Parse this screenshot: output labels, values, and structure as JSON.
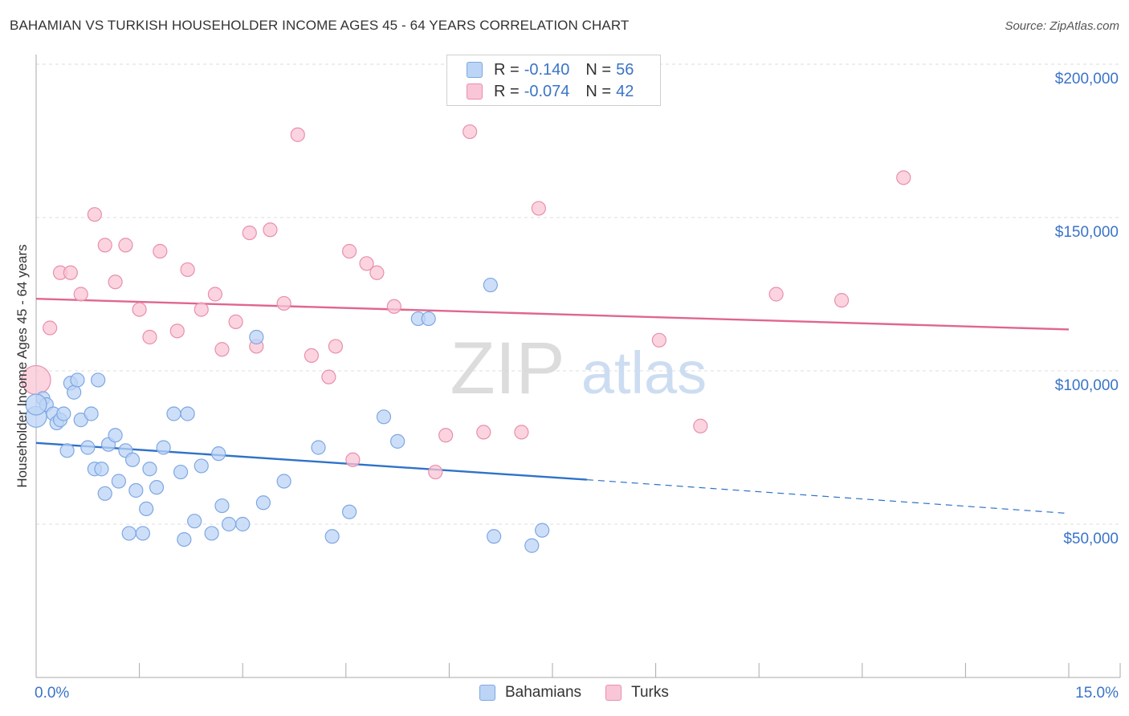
{
  "title": "BAHAMIAN VS TURKISH HOUSEHOLDER INCOME AGES 45 - 64 YEARS CORRELATION CHART",
  "source": "Source: ZipAtlas.com",
  "watermark": {
    "zip": "ZIP",
    "atlas": "atlas"
  },
  "legend": {
    "rows": [
      {
        "r_label": "R =",
        "r_value": "-0.140",
        "n_label": "N =",
        "n_value": "56"
      },
      {
        "r_label": "R =",
        "r_value": "-0.074",
        "n_label": "N =",
        "n_value": "42"
      }
    ]
  },
  "bottom_legend": [
    {
      "label": "Bahamians"
    },
    {
      "label": "Turks"
    }
  ],
  "colors": {
    "blue_fill": "#bcd4f6",
    "blue_stroke": "#7ea7e3",
    "blue_line": "#2f72c9",
    "pink_fill": "#f9c6d6",
    "pink_stroke": "#e98fab",
    "pink_line": "#e0668e",
    "axis_text": "#3a74c8",
    "grid": "#dddddd"
  },
  "chart_data": {
    "type": "scatter",
    "title": "BAHAMIAN VS TURKISH HOUSEHOLDER INCOME AGES 45 - 64 YEARS CORRELATION CHART",
    "xlabel": "",
    "ylabel": "Householder Income Ages 45 - 64 years",
    "xlim": [
      0,
      15
    ],
    "ylim": [
      0,
      210000
    ],
    "x_tick_labels": [
      "0.0%",
      "15.0%"
    ],
    "y_ticks": [
      50000,
      100000,
      150000,
      200000
    ],
    "y_tick_labels": [
      "$50,000",
      "$100,000",
      "$150,000",
      "$200,000"
    ],
    "grid": true,
    "legend_position": "top-center",
    "series": [
      {
        "name": "Bahamians",
        "points": [
          [
            0.0,
            85000
          ],
          [
            0.1,
            91000
          ],
          [
            0.15,
            89000
          ],
          [
            0.25,
            86000
          ],
          [
            0.3,
            83000
          ],
          [
            0.35,
            84000
          ],
          [
            0.4,
            86000
          ],
          [
            0.45,
            74000
          ],
          [
            0.5,
            96000
          ],
          [
            0.55,
            93000
          ],
          [
            0.6,
            97000
          ],
          [
            0.65,
            84000
          ],
          [
            0.75,
            75000
          ],
          [
            0.8,
            86000
          ],
          [
            0.85,
            68000
          ],
          [
            0.9,
            97000
          ],
          [
            0.95,
            68000
          ],
          [
            1.0,
            60000
          ],
          [
            1.05,
            76000
          ],
          [
            1.15,
            79000
          ],
          [
            1.2,
            64000
          ],
          [
            1.3,
            74000
          ],
          [
            1.35,
            47000
          ],
          [
            1.4,
            71000
          ],
          [
            1.45,
            61000
          ],
          [
            1.55,
            47000
          ],
          [
            1.6,
            55000
          ],
          [
            1.65,
            68000
          ],
          [
            1.75,
            62000
          ],
          [
            1.85,
            75000
          ],
          [
            2.0,
            86000
          ],
          [
            2.1,
            67000
          ],
          [
            2.15,
            45000
          ],
          [
            2.2,
            86000
          ],
          [
            2.3,
            51000
          ],
          [
            2.4,
            69000
          ],
          [
            2.55,
            47000
          ],
          [
            2.65,
            73000
          ],
          [
            2.7,
            56000
          ],
          [
            2.8,
            50000
          ],
          [
            3.0,
            50000
          ],
          [
            3.2,
            111000
          ],
          [
            3.3,
            57000
          ],
          [
            3.6,
            64000
          ],
          [
            4.1,
            75000
          ],
          [
            4.3,
            46000
          ],
          [
            4.55,
            54000
          ],
          [
            5.05,
            85000
          ],
          [
            5.25,
            77000
          ],
          [
            5.55,
            117000
          ],
          [
            5.7,
            117000
          ],
          [
            6.6,
            128000
          ],
          [
            6.65,
            46000
          ],
          [
            7.2,
            43000
          ],
          [
            7.35,
            48000
          ],
          [
            0.0,
            89000
          ]
        ],
        "trend": {
          "x": [
            0,
            8.0
          ],
          "y": [
            76500,
            64500
          ],
          "dashed_extension": {
            "x": [
              8.0,
              15.0
            ],
            "y": [
              64500,
              53500
            ]
          }
        }
      },
      {
        "name": "Turks",
        "points": [
          [
            0.0,
            97000
          ],
          [
            0.2,
            114000
          ],
          [
            0.35,
            132000
          ],
          [
            0.5,
            132000
          ],
          [
            0.65,
            125000
          ],
          [
            0.85,
            151000
          ],
          [
            1.0,
            141000
          ],
          [
            1.15,
            129000
          ],
          [
            1.3,
            141000
          ],
          [
            1.5,
            120000
          ],
          [
            1.65,
            111000
          ],
          [
            1.8,
            139000
          ],
          [
            2.05,
            113000
          ],
          [
            2.2,
            133000
          ],
          [
            2.4,
            120000
          ],
          [
            2.6,
            125000
          ],
          [
            2.7,
            107000
          ],
          [
            2.9,
            116000
          ],
          [
            3.1,
            145000
          ],
          [
            3.2,
            108000
          ],
          [
            3.4,
            146000
          ],
          [
            3.6,
            122000
          ],
          [
            3.8,
            177000
          ],
          [
            4.0,
            105000
          ],
          [
            4.25,
            98000
          ],
          [
            4.35,
            108000
          ],
          [
            4.55,
            139000
          ],
          [
            4.6,
            71000
          ],
          [
            4.8,
            135000
          ],
          [
            4.95,
            132000
          ],
          [
            5.2,
            121000
          ],
          [
            5.8,
            67000
          ],
          [
            5.95,
            79000
          ],
          [
            6.3,
            178000
          ],
          [
            6.5,
            80000
          ],
          [
            7.05,
            80000
          ],
          [
            7.3,
            153000
          ],
          [
            9.05,
            110000
          ],
          [
            9.65,
            82000
          ],
          [
            10.75,
            125000
          ],
          [
            11.7,
            123000
          ],
          [
            12.6,
            163000
          ]
        ],
        "trend": {
          "x": [
            0,
            15.0
          ],
          "y": [
            123500,
            113500
          ]
        }
      }
    ]
  }
}
